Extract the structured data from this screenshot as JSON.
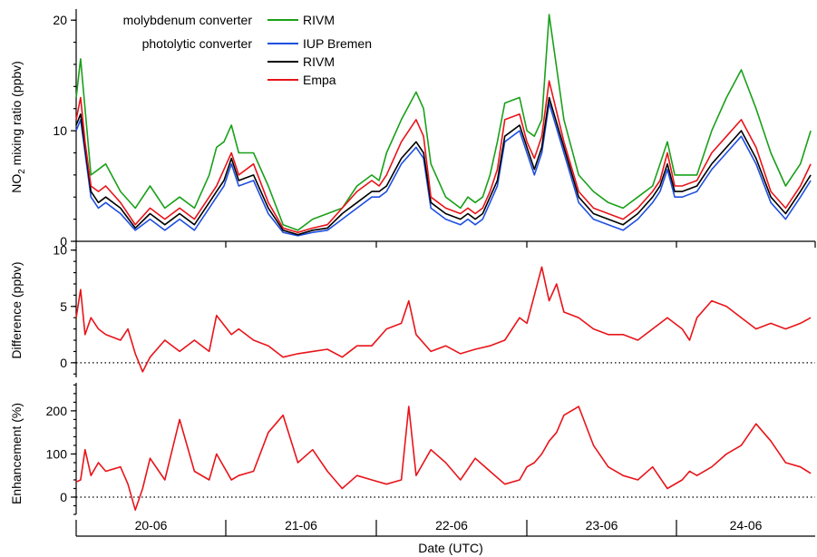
{
  "chart_data": [
    {
      "type": "line",
      "panel": "top",
      "ylabel_prefix": "NO",
      "ylabel_sub": "2",
      "ylabel_suffix": " mixing ratio (ppbv)",
      "ylim": [
        0,
        21
      ],
      "yticks": [
        0,
        10,
        20
      ],
      "legend": {
        "placement": "top-left",
        "group1_label": "molybdenum converter",
        "group2_label": "photolytic converter"
      },
      "series": [
        {
          "name": "RIVM",
          "group": "molybdenum converter",
          "color": "#1aa01a",
          "x": [
            0.0,
            0.03,
            0.06,
            0.1,
            0.15,
            0.2,
            0.3,
            0.4,
            0.5,
            0.6,
            0.7,
            0.8,
            0.9,
            0.95,
            1.0,
            1.05,
            1.1,
            1.2,
            1.3,
            1.4,
            1.5,
            1.6,
            1.7,
            1.8,
            1.9,
            2.0,
            2.05,
            2.1,
            2.2,
            2.3,
            2.35,
            2.4,
            2.5,
            2.6,
            2.65,
            2.7,
            2.75,
            2.8,
            2.85,
            2.9,
            3.0,
            3.05,
            3.1,
            3.15,
            3.2,
            3.3,
            3.4,
            3.5,
            3.6,
            3.7,
            3.8,
            3.9,
            3.95,
            4.0,
            4.05,
            4.1,
            4.2,
            4.3,
            4.4,
            4.5,
            4.6,
            4.7,
            4.8,
            4.9,
            4.97
          ],
          "y": [
            13,
            16.5,
            12,
            6,
            6.5,
            7,
            4.5,
            3,
            5,
            3,
            4,
            3,
            6,
            8.5,
            9,
            10.5,
            8,
            8,
            5,
            1.5,
            1,
            2,
            2.5,
            3,
            5,
            6,
            5.5,
            8,
            11,
            13.5,
            12,
            7,
            4,
            3,
            4,
            3.5,
            4,
            6,
            9,
            12.5,
            13,
            10,
            9.5,
            11,
            20.5,
            11,
            6,
            4.5,
            3.5,
            3,
            4,
            5,
            7,
            9,
            6,
            6,
            6,
            10,
            13,
            15.5,
            12,
            8,
            5,
            7,
            10
          ]
        },
        {
          "name": "IUP Bremen",
          "group": "photolytic converter",
          "color": "#1f4fe0",
          "x": [
            0.0,
            0.03,
            0.06,
            0.1,
            0.15,
            0.2,
            0.3,
            0.4,
            0.5,
            0.6,
            0.7,
            0.8,
            0.9,
            0.95,
            1.0,
            1.05,
            1.1,
            1.2,
            1.3,
            1.4,
            1.5,
            1.6,
            1.7,
            1.8,
            1.9,
            2.0,
            2.05,
            2.1,
            2.2,
            2.3,
            2.35,
            2.4,
            2.5,
            2.6,
            2.65,
            2.7,
            2.75,
            2.8,
            2.85,
            2.9,
            3.0,
            3.05,
            3.1,
            3.15,
            3.2,
            3.3,
            3.4,
            3.5,
            3.6,
            3.7,
            3.8,
            3.9,
            3.95,
            4.0,
            4.05,
            4.1,
            4.2,
            4.3,
            4.4,
            4.5,
            4.6,
            4.7,
            4.8,
            4.9,
            4.97
          ],
          "y": [
            10,
            11,
            8,
            4,
            3,
            3.5,
            2.5,
            1,
            2,
            1,
            2,
            1,
            3,
            4,
            5,
            7,
            5,
            5.5,
            2.5,
            0.8,
            0.5,
            0.8,
            1,
            2,
            3,
            4,
            4,
            4.5,
            7,
            8.5,
            7.5,
            3,
            2,
            1.5,
            2,
            1.5,
            2,
            3.5,
            5,
            9,
            10,
            8,
            6,
            8,
            12.5,
            8,
            3.5,
            2,
            1.5,
            1,
            2,
            3.5,
            4.5,
            6.5,
            4,
            4,
            4.5,
            6.5,
            8,
            9.5,
            7,
            3.5,
            2,
            4,
            5.5
          ]
        },
        {
          "name": "RIVM",
          "group": "photolytic converter",
          "color": "#000000",
          "x": [
            0.0,
            0.03,
            0.06,
            0.1,
            0.15,
            0.2,
            0.3,
            0.4,
            0.5,
            0.6,
            0.7,
            0.8,
            0.9,
            0.95,
            1.0,
            1.05,
            1.1,
            1.2,
            1.3,
            1.4,
            1.5,
            1.6,
            1.7,
            1.8,
            1.9,
            2.0,
            2.05,
            2.1,
            2.2,
            2.3,
            2.35,
            2.4,
            2.5,
            2.6,
            2.65,
            2.7,
            2.75,
            2.8,
            2.85,
            2.9,
            3.0,
            3.05,
            3.1,
            3.15,
            3.2,
            3.3,
            3.4,
            3.5,
            3.6,
            3.7,
            3.8,
            3.9,
            3.95,
            4.0,
            4.05,
            4.1,
            4.2,
            4.3,
            4.4,
            4.5,
            4.6,
            4.7,
            4.8,
            4.9,
            4.97
          ],
          "y": [
            10.5,
            11.5,
            8.5,
            4.5,
            3.5,
            4,
            3,
            1.2,
            2.5,
            1.5,
            2.5,
            1.5,
            3.5,
            4.5,
            5.5,
            7.5,
            5.5,
            6,
            3,
            1,
            0.6,
            1,
            1.2,
            2.5,
            3.5,
            4.5,
            4.5,
            5,
            7.5,
            9,
            8,
            3.5,
            2.5,
            2,
            2.5,
            2,
            2.5,
            4,
            5.5,
            9.5,
            10.5,
            8.5,
            6.5,
            8.5,
            13,
            8.5,
            4,
            2.5,
            2,
            1.5,
            2.5,
            4,
            5,
            7,
            4.5,
            4.5,
            5,
            7,
            8.5,
            10,
            7.5,
            4,
            2.5,
            4.5,
            6
          ]
        },
        {
          "name": "Empa",
          "group": "photolytic converter",
          "color": "#e8141a",
          "x": [
            0.0,
            0.03,
            0.06,
            0.1,
            0.15,
            0.2,
            0.3,
            0.4,
            0.5,
            0.6,
            0.7,
            0.8,
            0.9,
            0.95,
            1.0,
            1.05,
            1.1,
            1.2,
            1.3,
            1.4,
            1.5,
            1.6,
            1.7,
            1.8,
            1.9,
            2.0,
            2.05,
            2.1,
            2.2,
            2.3,
            2.35,
            2.4,
            2.5,
            2.6,
            2.65,
            2.7,
            2.75,
            2.8,
            2.85,
            2.9,
            3.0,
            3.05,
            3.1,
            3.15,
            3.2,
            3.3,
            3.4,
            3.5,
            3.6,
            3.7,
            3.8,
            3.9,
            3.95,
            4.0,
            4.05,
            4.1,
            4.2,
            4.3,
            4.4,
            4.5,
            4.6,
            4.7,
            4.8,
            4.9,
            4.97
          ],
          "y": [
            11,
            13,
            9,
            5,
            4.5,
            5,
            3.5,
            1.5,
            3,
            2,
            3,
            2,
            4,
            5,
            6.5,
            8,
            6,
            7,
            3.5,
            1.2,
            0.8,
            1.2,
            1.5,
            3,
            4.5,
            5.5,
            5,
            6,
            9,
            11,
            9.5,
            4,
            3,
            2.5,
            3,
            2.5,
            3,
            4.5,
            6.5,
            11,
            11.5,
            9,
            7.5,
            9.5,
            14.5,
            9,
            4.5,
            3,
            2.5,
            2,
            3,
            4.5,
            5.5,
            8,
            5,
            5,
            5.5,
            8,
            9.5,
            11,
            8.5,
            4.5,
            3,
            5,
            7
          ]
        }
      ]
    },
    {
      "type": "line",
      "panel": "middle",
      "ylabel": "Difference (ppbv)",
      "ylim": [
        -1.3,
        10.3
      ],
      "yticks": [
        0,
        5,
        10
      ],
      "zero_line": "dotted",
      "series": [
        {
          "color": "#e8141a",
          "x": [
            0.0,
            0.03,
            0.06,
            0.1,
            0.15,
            0.2,
            0.3,
            0.35,
            0.4,
            0.45,
            0.5,
            0.6,
            0.7,
            0.8,
            0.9,
            0.95,
            1.05,
            1.1,
            1.2,
            1.3,
            1.4,
            1.5,
            1.6,
            1.7,
            1.8,
            1.9,
            2.0,
            2.1,
            2.2,
            2.25,
            2.3,
            2.4,
            2.5,
            2.6,
            2.7,
            2.8,
            2.9,
            3.0,
            3.05,
            3.1,
            3.15,
            3.2,
            3.25,
            3.3,
            3.4,
            3.5,
            3.6,
            3.7,
            3.8,
            3.9,
            4.0,
            4.1,
            4.15,
            4.2,
            4.3,
            4.4,
            4.5,
            4.6,
            4.7,
            4.8,
            4.9,
            4.97
          ],
          "y": [
            4,
            6.5,
            2.5,
            4,
            3,
            2.5,
            2,
            3,
            0.8,
            -0.8,
            0.5,
            2,
            1,
            2,
            1,
            4.2,
            2.5,
            3,
            2,
            1.5,
            0.5,
            0.8,
            1,
            1.2,
            0.5,
            1.5,
            1.5,
            3,
            3.5,
            5.5,
            2.5,
            1,
            1.5,
            0.8,
            1.2,
            1.5,
            2,
            4,
            3.5,
            6,
            8.5,
            5.5,
            7,
            4.5,
            4,
            3,
            2.5,
            2.5,
            2,
            3,
            4,
            3,
            2,
            4,
            5.5,
            5,
            4,
            3,
            3.5,
            3,
            3.5,
            4
          ]
        }
      ]
    },
    {
      "type": "line",
      "panel": "bottom",
      "ylabel": "Enhancement (%)",
      "ylim": [
        -40,
        265
      ],
      "yticks": [
        0,
        100,
        200
      ],
      "zero_line": "dotted",
      "xlabel": "Date (UTC)",
      "categories": [
        "20-06",
        "21-06",
        "22-06",
        "23-06",
        "24-06"
      ],
      "series": [
        {
          "color": "#e8141a",
          "x": [
            0.0,
            0.03,
            0.06,
            0.1,
            0.15,
            0.2,
            0.3,
            0.35,
            0.4,
            0.45,
            0.5,
            0.6,
            0.7,
            0.8,
            0.9,
            0.95,
            1.05,
            1.1,
            1.2,
            1.3,
            1.4,
            1.5,
            1.6,
            1.7,
            1.8,
            1.9,
            2.0,
            2.1,
            2.2,
            2.25,
            2.3,
            2.4,
            2.5,
            2.6,
            2.7,
            2.8,
            2.9,
            3.0,
            3.05,
            3.1,
            3.15,
            3.2,
            3.25,
            3.3,
            3.4,
            3.5,
            3.6,
            3.7,
            3.8,
            3.9,
            4.0,
            4.1,
            4.15,
            4.2,
            4.3,
            4.4,
            4.5,
            4.6,
            4.7,
            4.8,
            4.9,
            4.97
          ],
          "y": [
            35,
            40,
            110,
            50,
            80,
            60,
            70,
            30,
            -30,
            20,
            90,
            40,
            180,
            60,
            40,
            100,
            40,
            50,
            60,
            150,
            190,
            80,
            110,
            60,
            20,
            50,
            40,
            30,
            40,
            210,
            50,
            110,
            80,
            40,
            90,
            60,
            30,
            40,
            70,
            80,
            100,
            130,
            150,
            190,
            210,
            120,
            70,
            50,
            40,
            70,
            20,
            40,
            60,
            50,
            70,
            100,
            120,
            170,
            130,
            80,
            70,
            55
          ]
        }
      ]
    }
  ]
}
